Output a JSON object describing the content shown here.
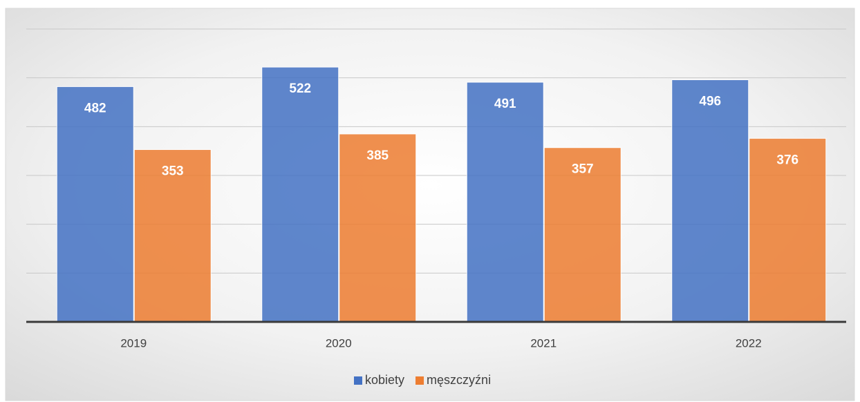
{
  "chart_data": {
    "type": "bar",
    "categories": [
      "2019",
      "2020",
      "2021",
      "2022"
    ],
    "series": [
      {
        "name": "kobiety",
        "color": "#4472c4",
        "values": [
          482,
          522,
          491,
          496
        ]
      },
      {
        "name": "męszczyźni",
        "color": "#ed7d31",
        "values": [
          353,
          385,
          357,
          376
        ]
      }
    ],
    "ylim": [
      0,
      600
    ],
    "yticks": [
      0,
      100,
      200,
      300,
      400,
      500,
      600
    ],
    "grid": true,
    "legend": "bottom"
  }
}
